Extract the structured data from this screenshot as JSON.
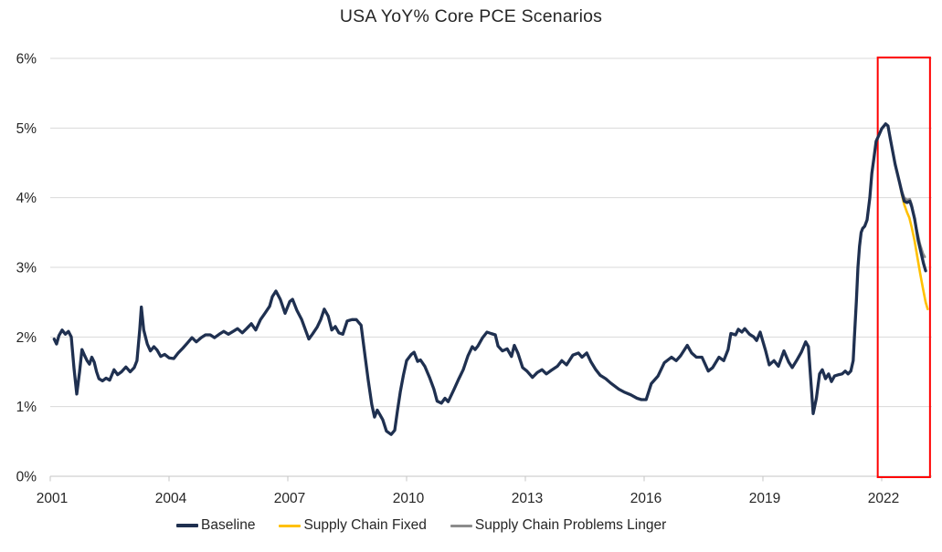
{
  "chart_data": {
    "type": "line",
    "title": "USA YoY% Core PCE Scenarios",
    "xlabel": "",
    "ylabel": "",
    "grid": true,
    "legend_position": "bottom",
    "ylim": [
      0,
      6
    ],
    "xlim": [
      2001,
      2023.3
    ],
    "y_ticks": [
      "0%",
      "1%",
      "2%",
      "3%",
      "4%",
      "5%",
      "6%"
    ],
    "x_ticks": [
      2001,
      2004,
      2007,
      2010,
      2013,
      2016,
      2019,
      2022
    ],
    "colors": {
      "gridline": "#D9D9D9",
      "axis": "#C6C6C6",
      "tick_text": "#262626",
      "title_text": "#262626",
      "highlight_box": "#FF0000"
    },
    "annotations": {
      "forecast_box": {
        "x0": 2021.9,
        "x1": 2023.22,
        "y0": 0,
        "y1": 6,
        "stroke": "#FF0000",
        "stroke_width": 2
      }
    },
    "series": [
      {
        "name": "Baseline",
        "color": "#1F3050",
        "width": 3.3,
        "points": [
          [
            2001.1,
            1.97
          ],
          [
            2001.16,
            1.9
          ],
          [
            2001.22,
            2.02
          ],
          [
            2001.3,
            2.1
          ],
          [
            2001.38,
            2.04
          ],
          [
            2001.46,
            2.08
          ],
          [
            2001.53,
            2.0
          ],
          [
            2001.6,
            1.55
          ],
          [
            2001.67,
            1.18
          ],
          [
            2001.74,
            1.5
          ],
          [
            2001.8,
            1.82
          ],
          [
            2001.87,
            1.73
          ],
          [
            2001.93,
            1.66
          ],
          [
            2001.99,
            1.61
          ],
          [
            2002.05,
            1.71
          ],
          [
            2002.11,
            1.64
          ],
          [
            2002.17,
            1.5
          ],
          [
            2002.23,
            1.4
          ],
          [
            2002.32,
            1.37
          ],
          [
            2002.41,
            1.41
          ],
          [
            2002.5,
            1.38
          ],
          [
            2002.61,
            1.53
          ],
          [
            2002.7,
            1.46
          ],
          [
            2002.8,
            1.5
          ],
          [
            2002.91,
            1.57
          ],
          [
            2003.02,
            1.5
          ],
          [
            2003.12,
            1.56
          ],
          [
            2003.19,
            1.66
          ],
          [
            2003.26,
            2.1
          ],
          [
            2003.3,
            2.43
          ],
          [
            2003.36,
            2.1
          ],
          [
            2003.45,
            1.9
          ],
          [
            2003.53,
            1.8
          ],
          [
            2003.62,
            1.86
          ],
          [
            2003.7,
            1.81
          ],
          [
            2003.79,
            1.72
          ],
          [
            2003.89,
            1.75
          ],
          [
            2004.0,
            1.7
          ],
          [
            2004.12,
            1.69
          ],
          [
            2004.23,
            1.77
          ],
          [
            2004.35,
            1.84
          ],
          [
            2004.46,
            1.91
          ],
          [
            2004.58,
            1.99
          ],
          [
            2004.69,
            1.93
          ],
          [
            2004.81,
            1.99
          ],
          [
            2004.92,
            2.03
          ],
          [
            2005.04,
            2.03
          ],
          [
            2005.15,
            1.99
          ],
          [
            2005.27,
            2.04
          ],
          [
            2005.38,
            2.08
          ],
          [
            2005.5,
            2.04
          ],
          [
            2005.62,
            2.08
          ],
          [
            2005.73,
            2.12
          ],
          [
            2005.85,
            2.06
          ],
          [
            2005.96,
            2.12
          ],
          [
            2006.08,
            2.19
          ],
          [
            2006.19,
            2.1
          ],
          [
            2006.31,
            2.25
          ],
          [
            2006.42,
            2.34
          ],
          [
            2006.54,
            2.44
          ],
          [
            2006.61,
            2.58
          ],
          [
            2006.7,
            2.66
          ],
          [
            2006.81,
            2.54
          ],
          [
            2006.93,
            2.34
          ],
          [
            2007.05,
            2.51
          ],
          [
            2007.12,
            2.54
          ],
          [
            2007.23,
            2.38
          ],
          [
            2007.35,
            2.25
          ],
          [
            2007.46,
            2.08
          ],
          [
            2007.53,
            1.97
          ],
          [
            2007.62,
            2.04
          ],
          [
            2007.74,
            2.14
          ],
          [
            2007.83,
            2.25
          ],
          [
            2007.92,
            2.4
          ],
          [
            2008.02,
            2.3
          ],
          [
            2008.11,
            2.1
          ],
          [
            2008.2,
            2.15
          ],
          [
            2008.29,
            2.06
          ],
          [
            2008.39,
            2.04
          ],
          [
            2008.5,
            2.23
          ],
          [
            2008.62,
            2.25
          ],
          [
            2008.73,
            2.25
          ],
          [
            2008.85,
            2.17
          ],
          [
            2008.96,
            1.69
          ],
          [
            2009.03,
            1.38
          ],
          [
            2009.12,
            1.03
          ],
          [
            2009.19,
            0.85
          ],
          [
            2009.26,
            0.95
          ],
          [
            2009.33,
            0.88
          ],
          [
            2009.4,
            0.81
          ],
          [
            2009.49,
            0.65
          ],
          [
            2009.61,
            0.6
          ],
          [
            2009.7,
            0.66
          ],
          [
            2009.77,
            0.94
          ],
          [
            2009.84,
            1.21
          ],
          [
            2009.92,
            1.45
          ],
          [
            2010.0,
            1.66
          ],
          [
            2010.12,
            1.75
          ],
          [
            2010.19,
            1.78
          ],
          [
            2010.28,
            1.65
          ],
          [
            2010.35,
            1.67
          ],
          [
            2010.46,
            1.58
          ],
          [
            2010.58,
            1.42
          ],
          [
            2010.69,
            1.25
          ],
          [
            2010.77,
            1.08
          ],
          [
            2010.88,
            1.05
          ],
          [
            2010.97,
            1.12
          ],
          [
            2011.05,
            1.07
          ],
          [
            2011.2,
            1.25
          ],
          [
            2011.32,
            1.4
          ],
          [
            2011.43,
            1.53
          ],
          [
            2011.55,
            1.73
          ],
          [
            2011.66,
            1.86
          ],
          [
            2011.73,
            1.82
          ],
          [
            2011.8,
            1.87
          ],
          [
            2011.92,
            1.99
          ],
          [
            2012.03,
            2.07
          ],
          [
            2012.13,
            2.05
          ],
          [
            2012.24,
            2.03
          ],
          [
            2012.31,
            1.87
          ],
          [
            2012.42,
            1.8
          ],
          [
            2012.54,
            1.83
          ],
          [
            2012.65,
            1.72
          ],
          [
            2012.72,
            1.88
          ],
          [
            2012.81,
            1.77
          ],
          [
            2012.93,
            1.56
          ],
          [
            2013.04,
            1.51
          ],
          [
            2013.18,
            1.42
          ],
          [
            2013.3,
            1.49
          ],
          [
            2013.42,
            1.53
          ],
          [
            2013.53,
            1.47
          ],
          [
            2013.65,
            1.52
          ],
          [
            2013.81,
            1.58
          ],
          [
            2013.92,
            1.66
          ],
          [
            2014.04,
            1.6
          ],
          [
            2014.2,
            1.74
          ],
          [
            2014.34,
            1.77
          ],
          [
            2014.43,
            1.71
          ],
          [
            2014.55,
            1.77
          ],
          [
            2014.66,
            1.64
          ],
          [
            2014.78,
            1.53
          ],
          [
            2014.89,
            1.45
          ],
          [
            2015.03,
            1.4
          ],
          [
            2015.15,
            1.34
          ],
          [
            2015.36,
            1.25
          ],
          [
            2015.49,
            1.21
          ],
          [
            2015.66,
            1.17
          ],
          [
            2015.82,
            1.12
          ],
          [
            2015.93,
            1.1
          ],
          [
            2016.05,
            1.1
          ],
          [
            2016.18,
            1.33
          ],
          [
            2016.35,
            1.44
          ],
          [
            2016.51,
            1.63
          ],
          [
            2016.69,
            1.71
          ],
          [
            2016.81,
            1.66
          ],
          [
            2016.92,
            1.73
          ],
          [
            2017.09,
            1.88
          ],
          [
            2017.2,
            1.77
          ],
          [
            2017.32,
            1.71
          ],
          [
            2017.46,
            1.71
          ],
          [
            2017.62,
            1.51
          ],
          [
            2017.73,
            1.56
          ],
          [
            2017.89,
            1.71
          ],
          [
            2018.01,
            1.66
          ],
          [
            2018.12,
            1.82
          ],
          [
            2018.19,
            2.05
          ],
          [
            2018.31,
            2.03
          ],
          [
            2018.38,
            2.11
          ],
          [
            2018.47,
            2.07
          ],
          [
            2018.54,
            2.12
          ],
          [
            2018.66,
            2.04
          ],
          [
            2018.77,
            2.0
          ],
          [
            2018.84,
            1.95
          ],
          [
            2018.93,
            2.07
          ],
          [
            2019.07,
            1.8
          ],
          [
            2019.16,
            1.6
          ],
          [
            2019.28,
            1.66
          ],
          [
            2019.39,
            1.58
          ],
          [
            2019.53,
            1.8
          ],
          [
            2019.65,
            1.64
          ],
          [
            2019.74,
            1.56
          ],
          [
            2019.85,
            1.66
          ],
          [
            2019.97,
            1.78
          ],
          [
            2020.08,
            1.93
          ],
          [
            2020.15,
            1.86
          ],
          [
            2020.22,
            1.29
          ],
          [
            2020.27,
            0.9
          ],
          [
            2020.35,
            1.12
          ],
          [
            2020.43,
            1.47
          ],
          [
            2020.5,
            1.53
          ],
          [
            2020.58,
            1.4
          ],
          [
            2020.66,
            1.47
          ],
          [
            2020.73,
            1.36
          ],
          [
            2020.81,
            1.44
          ],
          [
            2020.92,
            1.46
          ],
          [
            2021.0,
            1.47
          ],
          [
            2021.08,
            1.51
          ],
          [
            2021.15,
            1.47
          ],
          [
            2021.22,
            1.51
          ],
          [
            2021.28,
            1.66
          ],
          [
            2021.31,
            1.99
          ],
          [
            2021.36,
            2.52
          ],
          [
            2021.4,
            3.0
          ],
          [
            2021.44,
            3.3
          ],
          [
            2021.48,
            3.5
          ],
          [
            2021.52,
            3.56
          ],
          [
            2021.57,
            3.59
          ],
          [
            2021.63,
            3.68
          ],
          [
            2021.7,
            4.0
          ],
          [
            2021.75,
            4.35
          ],
          [
            2021.8,
            4.55
          ],
          [
            2021.86,
            4.81
          ],
          [
            2021.93,
            4.9
          ],
          [
            2022.0,
            4.99
          ],
          [
            2022.1,
            5.06
          ],
          [
            2022.16,
            5.03
          ],
          [
            2022.22,
            4.84
          ],
          [
            2022.34,
            4.48
          ],
          [
            2022.45,
            4.22
          ],
          [
            2022.52,
            4.05
          ],
          [
            2022.57,
            3.95
          ],
          [
            2022.64,
            3.93
          ],
          [
            2022.71,
            3.95
          ],
          [
            2022.76,
            3.87
          ],
          [
            2022.83,
            3.7
          ],
          [
            2022.92,
            3.39
          ],
          [
            2022.99,
            3.22
          ],
          [
            2023.06,
            3.05
          ],
          [
            2023.11,
            2.95
          ]
        ]
      },
      {
        "name": "Supply Chain Fixed",
        "color": "#FFC000",
        "width": 2.6,
        "points": [
          [
            2022.45,
            4.22
          ],
          [
            2022.52,
            4.02
          ],
          [
            2022.57,
            3.9
          ],
          [
            2022.64,
            3.79
          ],
          [
            2022.7,
            3.71
          ],
          [
            2022.76,
            3.57
          ],
          [
            2022.83,
            3.38
          ],
          [
            2022.9,
            3.15
          ],
          [
            2022.97,
            2.92
          ],
          [
            2023.04,
            2.7
          ],
          [
            2023.11,
            2.5
          ],
          [
            2023.16,
            2.4
          ]
        ]
      },
      {
        "name": "Supply Chain Problems Linger",
        "color": "#8C8C8C",
        "width": 2.6,
        "points": [
          [
            2022.45,
            4.22
          ],
          [
            2022.52,
            4.08
          ],
          [
            2022.57,
            4.0
          ],
          [
            2022.64,
            3.97
          ],
          [
            2022.71,
            3.98
          ],
          [
            2022.76,
            3.9
          ],
          [
            2022.83,
            3.68
          ],
          [
            2022.9,
            3.5
          ],
          [
            2022.97,
            3.33
          ],
          [
            2023.04,
            3.2
          ],
          [
            2023.09,
            3.15
          ]
        ]
      }
    ]
  }
}
